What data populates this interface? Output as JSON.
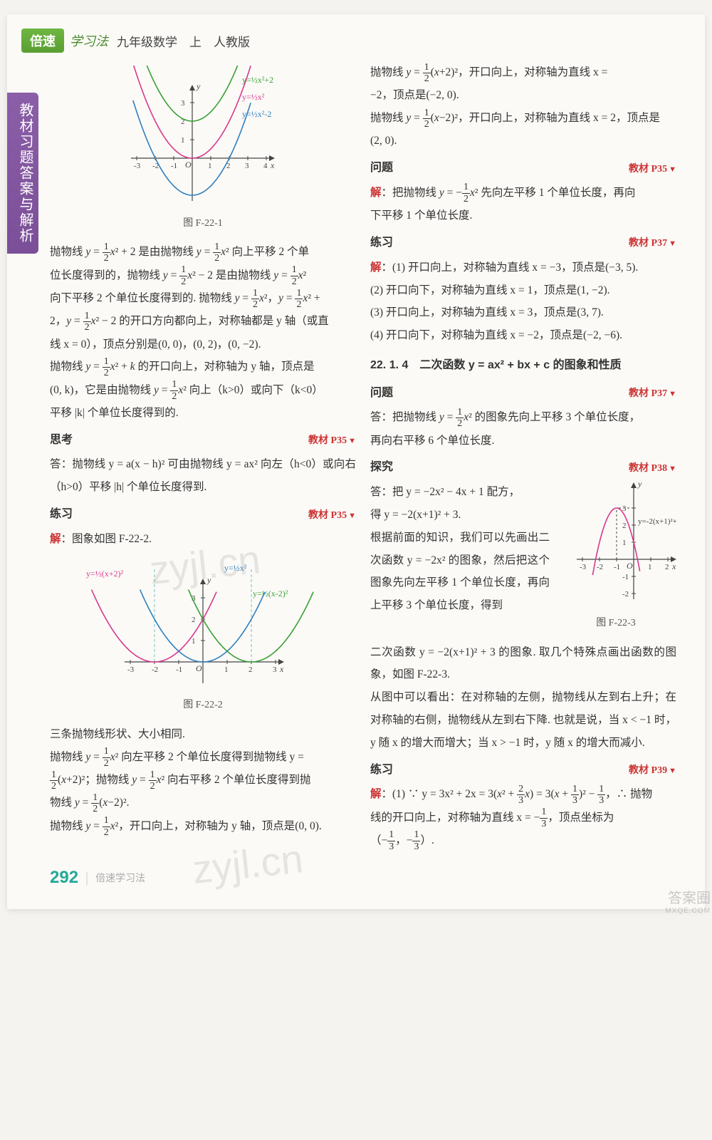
{
  "header": {
    "badge": "倍速",
    "sub": "学习法",
    "grade": "九年级数学　上　人教版"
  },
  "side_tab": "教材习题答案与解析",
  "watermark": "zyjl.cn",
  "footer": {
    "page_number": "292",
    "text": "倍速学习法"
  },
  "corner": {
    "main": "答案圈",
    "url": "MXQE.COM"
  },
  "sections": {
    "sikao": {
      "label": "思考",
      "ref": "教材 P35"
    },
    "lianxi_p35": {
      "label": "练习",
      "ref": "教材 P35"
    },
    "wenti_p35": {
      "label": "问题",
      "ref": "教材 P35"
    },
    "lianxi_p37": {
      "label": "练习",
      "ref": "教材 P37"
    },
    "wenti_p37": {
      "label": "问题",
      "ref": "教材 P37"
    },
    "tanjiu_p38": {
      "label": "探究",
      "ref": "教材 P38"
    },
    "lianxi_p39": {
      "label": "练习",
      "ref": "教材 P39"
    }
  },
  "section_title": "22. 1. 4　二次函数 y = ax² + bx + c 的图象和性质",
  "figures": {
    "f1": {
      "label": "图 F-22-1",
      "xlim": [
        -3,
        4
      ],
      "ylim": [
        -2,
        3.5
      ],
      "xticks": [
        -3,
        -2,
        -1,
        1,
        2,
        3,
        4
      ],
      "yticks": [
        1,
        2,
        3
      ],
      "curves": [
        {
          "label": "y=½x²+2",
          "color": "#3aa035",
          "vshift": 2
        },
        {
          "label": "y=½x²",
          "color": "#d9388c",
          "vshift": 0
        },
        {
          "label": "y=½x²-2",
          "color": "#2f7fbf",
          "vshift": -2
        }
      ],
      "axis_color": "#444"
    },
    "f2": {
      "label": "图 F-22-2",
      "xlim": [
        -3,
        3
      ],
      "ylim": [
        -1,
        3.5
      ],
      "xticks": [
        -3,
        -2,
        -1,
        1,
        2,
        3
      ],
      "yticks": [
        1,
        2,
        3
      ],
      "curves": [
        {
          "label": "y=½(x+2)²",
          "color": "#d9388c",
          "hshift": -2
        },
        {
          "label": "y=½x²",
          "color": "#2f7fbf",
          "hshift": 0
        },
        {
          "label": "y=½(x-2)²",
          "color": "#3aa035",
          "hshift": 2
        }
      ],
      "axis_color": "#444",
      "dashed_color": "#70c3c0"
    },
    "f3": {
      "label": "图 F-22-3",
      "xlim": [
        -3,
        2
      ],
      "ylim": [
        -2,
        4
      ],
      "xticks": [
        -3,
        -2,
        -1,
        1,
        2
      ],
      "yticks": [
        -1,
        -2,
        1,
        2,
        3
      ],
      "curve": {
        "label": "y=-2(x+1)²+3",
        "color": "#d9388c",
        "vertex": [
          -1,
          3
        ]
      },
      "axis_color": "#444"
    }
  },
  "text": {
    "left_para1a": "抛物线 ",
    "left_para1b": " 是由抛物线 ",
    "left_para1c": " 向上平移 2 个单",
    "left_para2a": "位长度得到的，抛物线 ",
    "left_para2b": " 是由抛物线 ",
    "left_para3a": "向下平移 2 个单位长度得到的. 抛物线 ",
    "left_para3b": "，",
    "left_para4a": "2，",
    "left_para4b": " 的开口方向都向上，对称轴都是 y 轴（或直",
    "left_para5": "线 x = 0），顶点分别是(0, 0)，(0, 2)，(0, −2).",
    "left_para6a": "抛物线 ",
    "left_para6b": " 的开口向上，对称轴为 y 轴，顶点是",
    "left_para7a": "(0, k)，它是由抛物线 ",
    "left_para7b": " 向上（k>0）或向下（k<0）",
    "left_para8": "平移 |k| 个单位长度得到的.",
    "sikao_ans": "答：抛物线 y = a(x − h)² 可由抛物线 y = ax² 向左（h<0）或向右（h>0）平移 |h| 个单位长度得到.",
    "lianxi_fig_intro": "：图象如图 F-22-2.",
    "left_para9": "三条抛物线形状、大小相同.",
    "left_para10a": "抛物线 ",
    "left_para10b": " 向左平移 2 个单位长度得到抛物线 y =",
    "left_para11a": "；抛物线 ",
    "left_para11b": " 向右平移 2 个单位长度得到抛",
    "left_para12a": "物线 ",
    "left_para12b": ".",
    "left_para13a": "抛物线 ",
    "left_para13b": "，开口向上，对称轴为 y 轴，顶点是(0, 0).",
    "right_para1a": "抛物线 ",
    "right_para1b": "，开口向上，对称轴为直线 x =",
    "right_para2": "−2，顶点是(−2, 0).",
    "right_para3a": "抛物线 ",
    "right_para3b": "，开口向上，对称轴为直线 x = 2，顶点是",
    "right_para4": "(2, 0).",
    "wenti35a": "：把抛物线 ",
    "wenti35b": " 先向左平移 1 个单位长度，再向",
    "wenti35c": "下平移 1 个单位长度.",
    "lianxi37_1": "：(1) 开口向上，对称轴为直线 x = −3，顶点是(−3, 5).",
    "lianxi37_2": "(2) 开口向下，对称轴为直线 x = 1，顶点是(1, −2).",
    "lianxi37_3": "(3) 开口向上，对称轴为直线 x = 3，顶点是(3, 7).",
    "lianxi37_4": "(4) 开口向下，对称轴为直线 x = −2，顶点是(−2, −6).",
    "wenti37a": "答：把抛物线 ",
    "wenti37b": " 的图象先向上平移 3 个单位长度，",
    "wenti37c": "再向右平移 6 个单位长度.",
    "tanjiu_a": "答：把 y = −2x² − 4x + 1 配方，",
    "tanjiu_b": "得 y = −2(x+1)² + 3.",
    "tanjiu_c": "根据前面的知识，我们可以先画出二次函数 y = −2x² 的图象，然后把这个图象先向左平移 1 个单位长度，再向上平移 3 个单位长度，得到",
    "tanjiu_d": "二次函数 y = −2(x+1)² + 3 的图象. 取几个特殊点画出函数的图象，如图 F-22-3.",
    "tanjiu_e": "从图中可以看出：在对称轴的左侧，抛物线从左到右上升；在对称轴的右侧，抛物线从左到右下降. 也就是说，当 x < −1 时，y 随 x 的增大而增大；当 x > −1 时，y 随 x 的增大而减小.",
    "lianxi39a": "：(1) ∵ y = 3x² + 2x = 3",
    "lianxi39b": " = 3",
    "lianxi39c": " − ",
    "lianxi39d": "，∴ 抛物",
    "lianxi39e": "线的开口向上，对称轴为直线 x = −",
    "lianxi39f": "，顶点坐标为",
    "lianxi39g_open": "（−",
    "lianxi39g_mid": "，−",
    "lianxi39g_close": "）."
  },
  "fractions": {
    "half": {
      "num": "1",
      "den": "2"
    },
    "third": {
      "num": "1",
      "den": "3"
    },
    "two_thirds": {
      "num": "2",
      "den": "3"
    }
  }
}
